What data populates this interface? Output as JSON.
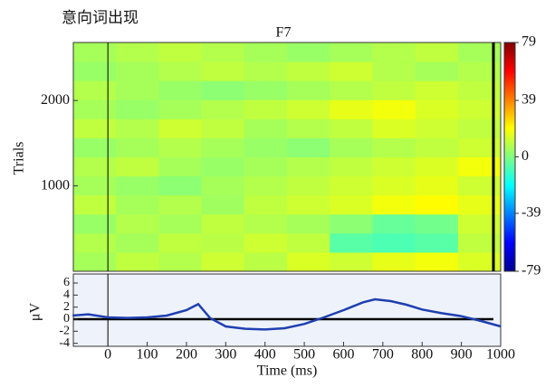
{
  "chart_data": [
    {
      "type": "heatmap",
      "annotation": "意向词出现",
      "title": "F7",
      "ylabel": "Trials",
      "xlim": [
        -88,
        1000
      ],
      "ylim": [
        0,
        2680
      ],
      "yticks": [
        1000,
        2000
      ],
      "clim": [
        -79,
        79
      ],
      "cticks": [
        79,
        39,
        0,
        -39,
        -79
      ],
      "matrix": [
        [
          6,
          10,
          8,
          12,
          9,
          14,
          12,
          16,
          18,
          14
        ],
        [
          8,
          6,
          10,
          9,
          12,
          10,
          -6,
          -8,
          -6,
          10
        ],
        [
          4,
          8,
          6,
          10,
          8,
          6,
          2,
          -4,
          -2,
          12
        ],
        [
          10,
          6,
          8,
          5,
          10,
          12,
          14,
          18,
          20,
          16
        ],
        [
          6,
          4,
          2,
          6,
          8,
          10,
          12,
          14,
          16,
          12
        ],
        [
          8,
          10,
          6,
          4,
          6,
          8,
          10,
          12,
          14,
          18
        ],
        [
          4,
          6,
          8,
          6,
          4,
          2,
          6,
          8,
          10,
          12
        ],
        [
          10,
          8,
          12,
          10,
          6,
          8,
          10,
          14,
          12,
          10
        ],
        [
          6,
          4,
          6,
          8,
          10,
          12,
          16,
          18,
          14,
          12
        ],
        [
          8,
          6,
          4,
          2,
          4,
          6,
          8,
          10,
          12,
          10
        ],
        [
          4,
          6,
          8,
          10,
          8,
          10,
          12,
          8,
          6,
          8
        ],
        [
          6,
          8,
          10,
          8,
          6,
          4,
          6,
          8,
          10,
          6
        ]
      ]
    },
    {
      "type": "line",
      "ylabel": "μV",
      "xlabel": "Time (ms)",
      "xlim": [
        -88,
        1000
      ],
      "ylim": [
        -4.5,
        7.5
      ],
      "xticks": [
        0,
        100,
        200,
        300,
        400,
        500,
        600,
        700,
        800,
        900,
        1000
      ],
      "yticks": [
        6,
        4,
        2,
        0,
        -2,
        -4
      ],
      "color": "#1f3fb0",
      "x": [
        -90,
        -50,
        0,
        50,
        100,
        150,
        200,
        230,
        260,
        300,
        350,
        400,
        450,
        500,
        550,
        600,
        650,
        680,
        720,
        760,
        800,
        850,
        900,
        950,
        1000
      ],
      "values": [
        0.6,
        0.8,
        0.3,
        0.2,
        0.3,
        0.6,
        1.5,
        2.5,
        0.2,
        -1.2,
        -1.6,
        -1.7,
        -1.5,
        -0.8,
        0.3,
        1.5,
        2.8,
        3.3,
        3,
        2.4,
        1.6,
        1,
        0.5,
        -0.3,
        -1.2
      ]
    }
  ]
}
